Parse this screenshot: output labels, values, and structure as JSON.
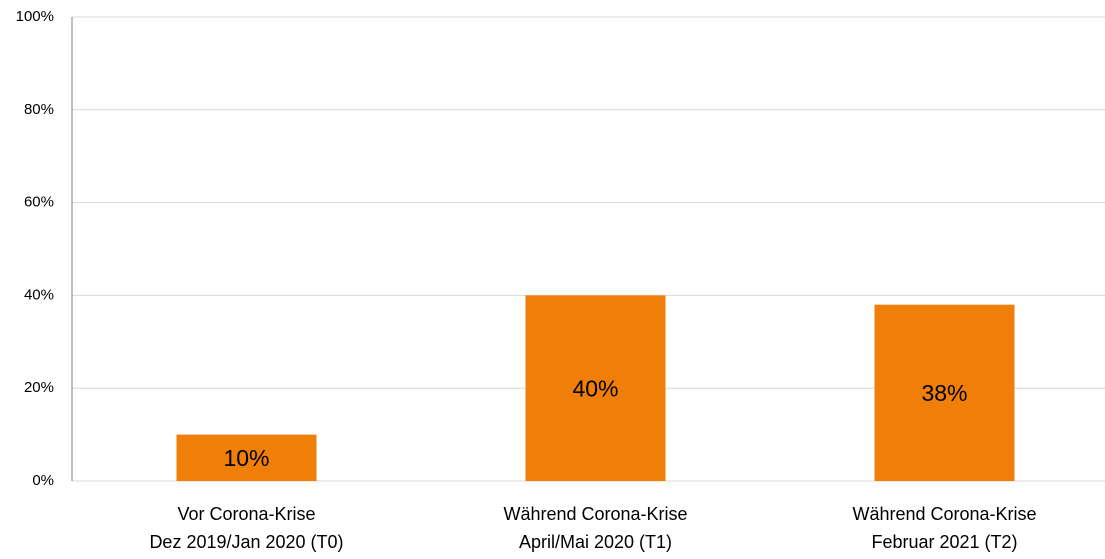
{
  "chart_data": {
    "type": "bar",
    "categories": [
      [
        "Vor Corona-Krise",
        "Dez 2019/Jan 2020 (T0)"
      ],
      [
        "Während Corona-Krise",
        "April/Mai 2020 (T1)"
      ],
      [
        "Während Corona-Krise",
        "Februar 2021 (T2)"
      ]
    ],
    "values": [
      10,
      40,
      38
    ],
    "value_labels": [
      "10%",
      "40%",
      "38%"
    ],
    "color": "#f07f09",
    "ylim": [
      0,
      100
    ],
    "yticks": [
      {
        "value": 0,
        "label": "0%"
      },
      {
        "value": 20,
        "label": "20%"
      },
      {
        "value": 40,
        "label": "40%"
      },
      {
        "value": 60,
        "label": "60%"
      },
      {
        "value": 80,
        "label": "80%"
      },
      {
        "value": 100,
        "label": "100%"
      }
    ],
    "grid": true
  }
}
